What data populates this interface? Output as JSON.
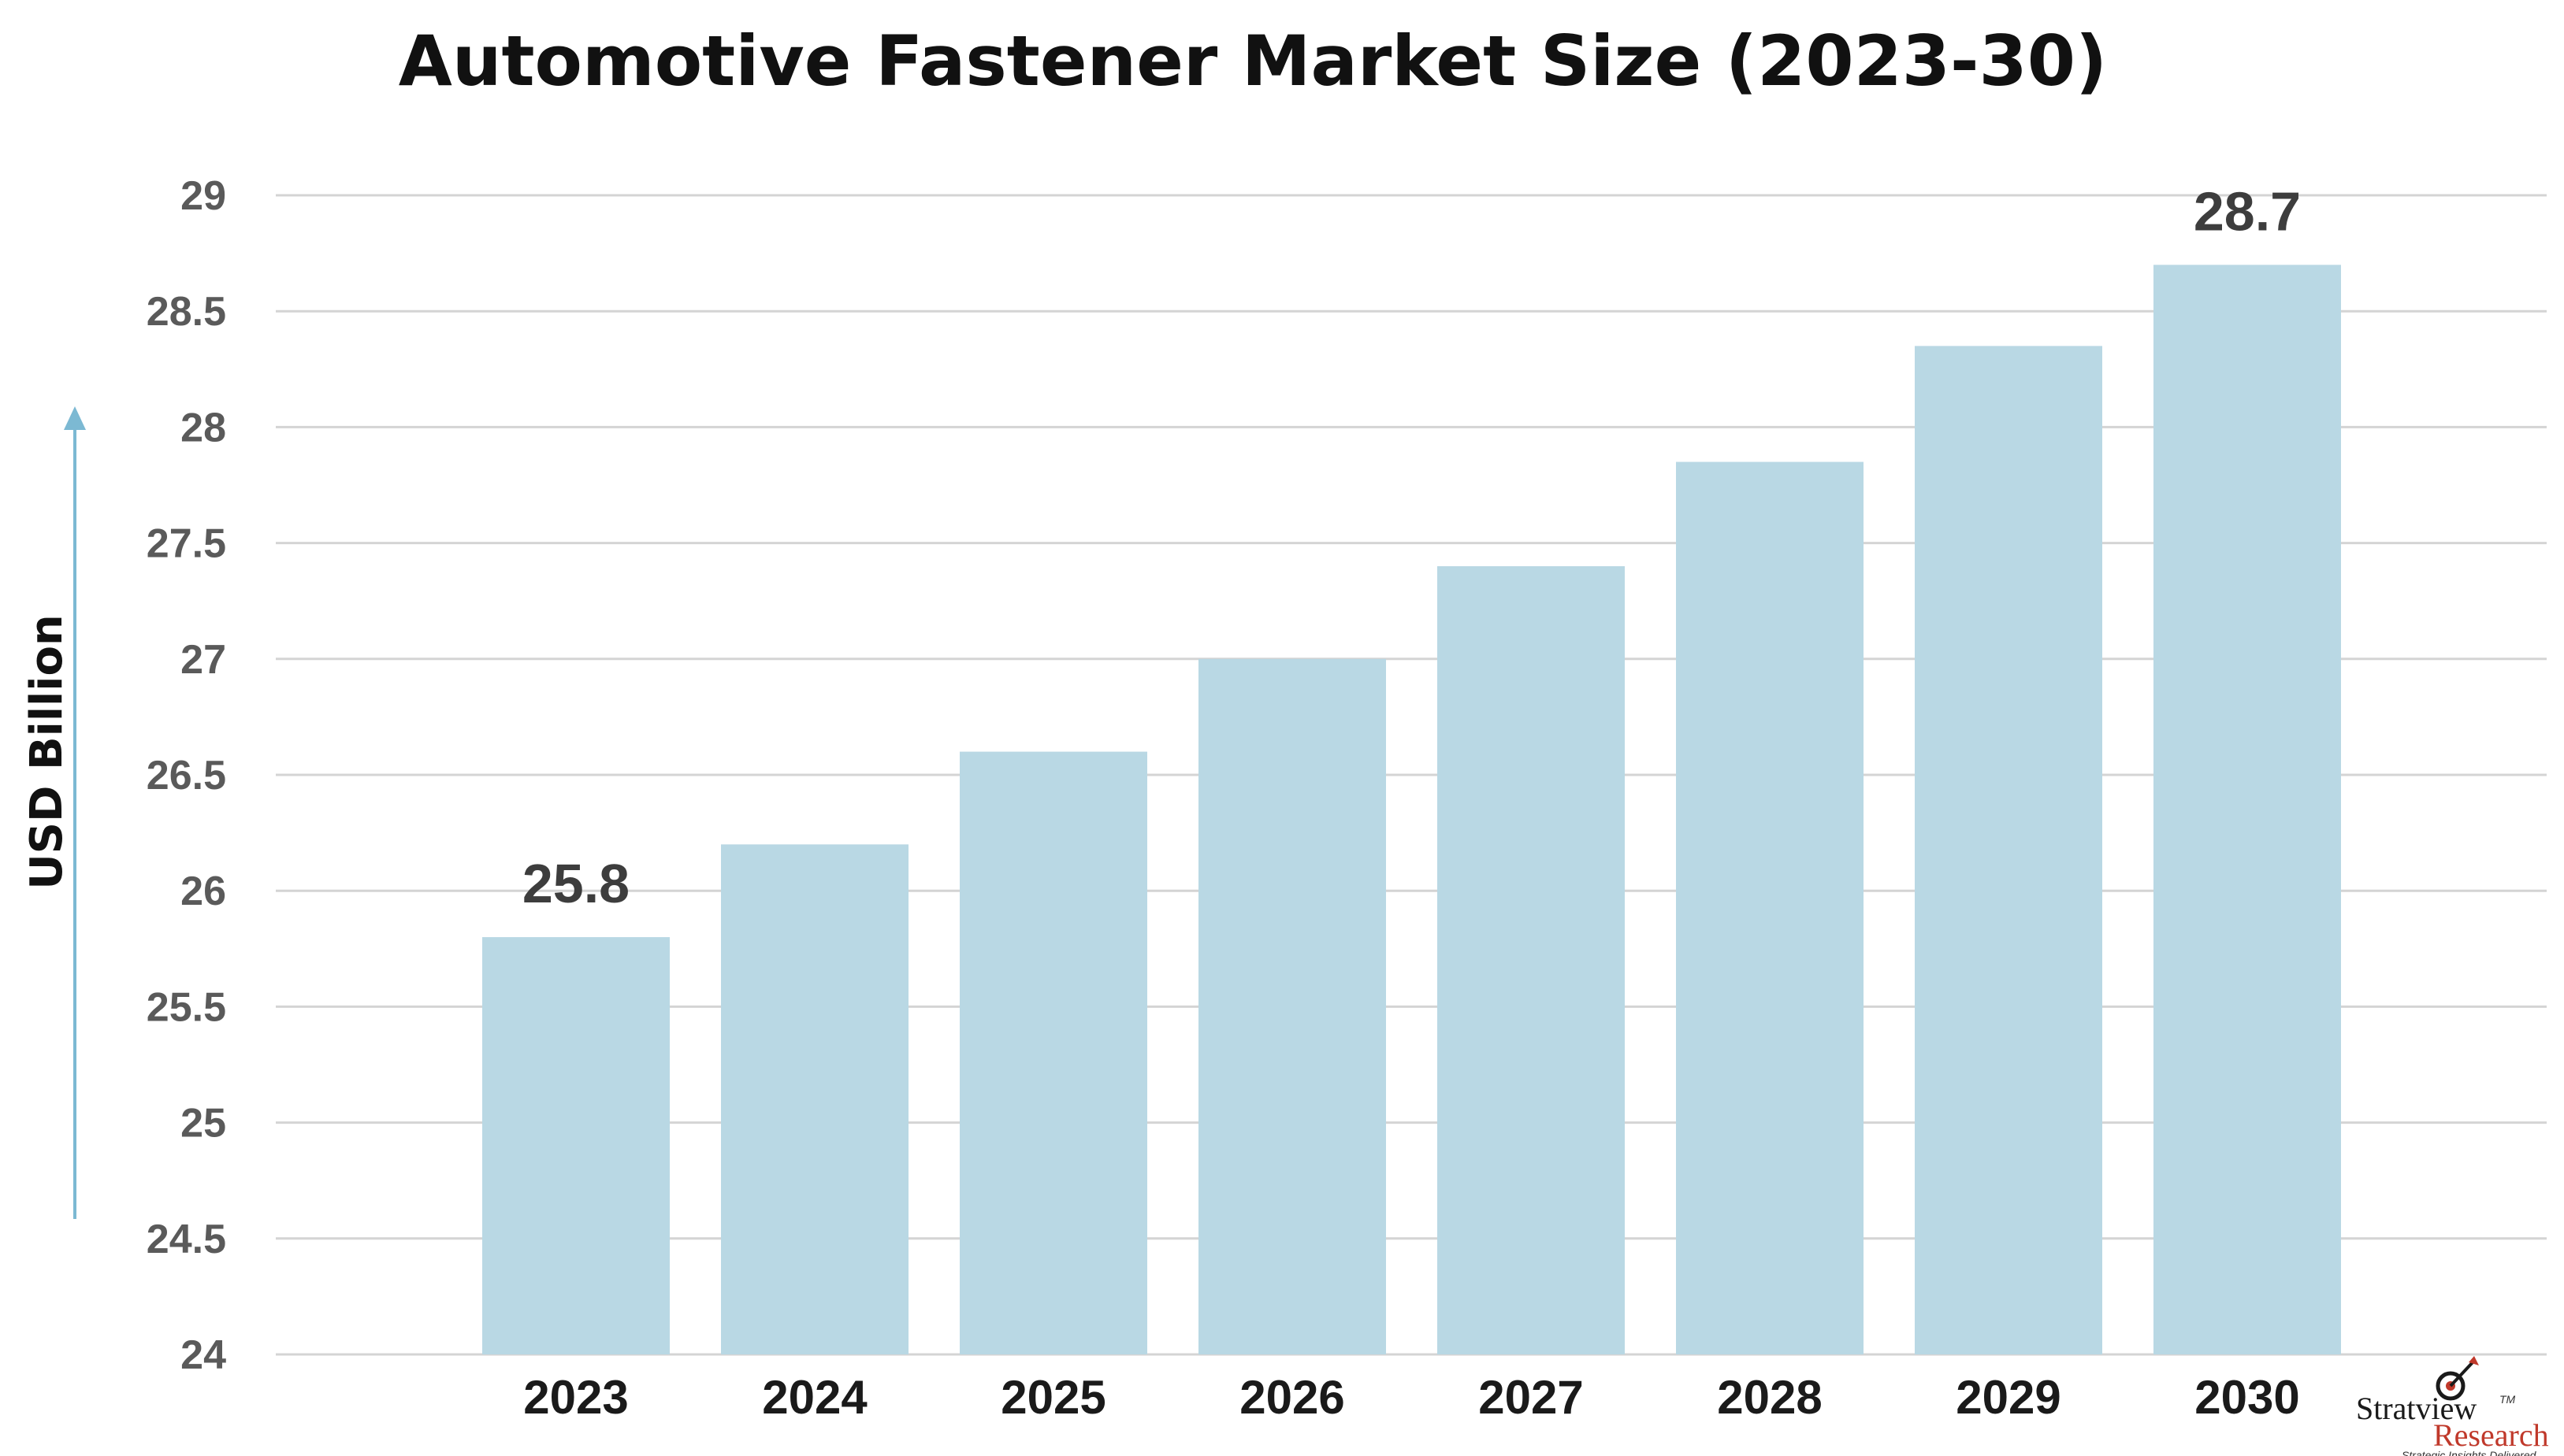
{
  "chart_data": {
    "type": "bar",
    "title": "Automotive Fastener Market Size (2023-30)",
    "xlabel": "",
    "ylabel": "USD Billion",
    "categories": [
      "2023",
      "2024",
      "2025",
      "2026",
      "2027",
      "2028",
      "2029",
      "2030"
    ],
    "values": [
      25.8,
      26.2,
      26.6,
      27.0,
      27.4,
      27.85,
      28.35,
      28.7
    ],
    "data_labels": [
      {
        "category": "2023",
        "text": "25.8"
      },
      {
        "category": "2030",
        "text": "28.7"
      }
    ],
    "ylim": [
      24,
      29
    ],
    "yticks": [
      "24",
      "24.5",
      "25",
      "25.5",
      "26",
      "26.5",
      "27",
      "27.5",
      "28",
      "28.5",
      "29"
    ],
    "grid": true,
    "legend": "none",
    "bar_color": "#b9d8e4",
    "axis_arrow_color": "#7cb9d3"
  },
  "brand": {
    "name": "Stratview",
    "sub": "Research",
    "tagline": "Strategic Insights Delivered",
    "trademark": "TM",
    "icon": "target-arrow-icon"
  }
}
